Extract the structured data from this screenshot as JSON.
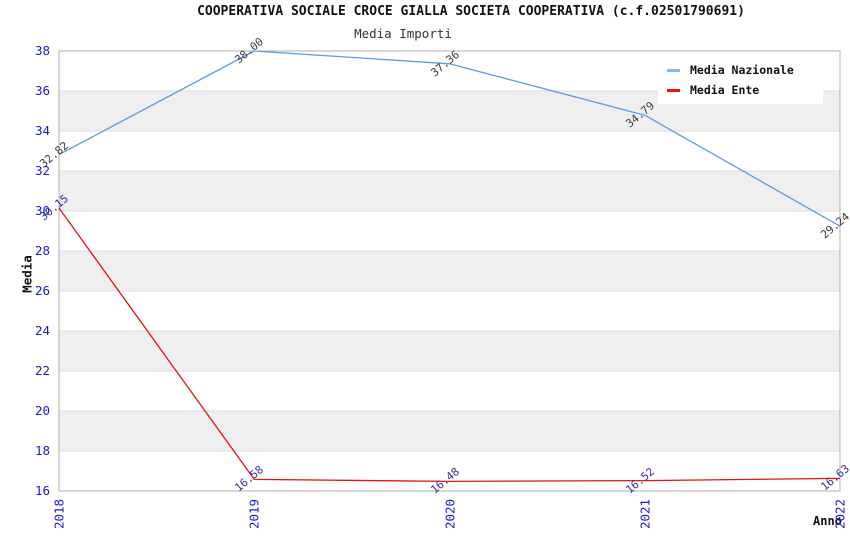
{
  "title": "COOPERATIVA SOCIALE CROCE GIALLA SOCIETA COOPERATIVA (c.f.02501790691)",
  "subtitle": "Media Importi",
  "y_axis": {
    "label": "Media",
    "ticks": [
      38,
      36,
      34,
      32,
      30,
      28,
      26,
      24,
      22,
      20,
      18,
      16
    ],
    "tick_color": "#1a1acd"
  },
  "x_axis": {
    "label": "Anno",
    "ticks": [
      "2018",
      "2019",
      "2020",
      "2021",
      "2022"
    ],
    "tick_color": "#1a1acd"
  },
  "legend": {
    "items": [
      {
        "label": "Media Nazionale",
        "color": "#85b9e8"
      },
      {
        "label": "Media Ente",
        "color": "#ee1111"
      }
    ]
  },
  "colors": {
    "band_white": "#ffffff",
    "band_gray": "#efefef",
    "gridline": "#dcdcdc",
    "plot_border": "#b0b0b0",
    "nazionale_line": "#5b9ce4",
    "ente_line": "#e81111",
    "nazionale_label": "#3a3a3a",
    "ente_label": "#32329b"
  },
  "chart_data": {
    "type": "line",
    "title": "COOPERATIVA SOCIALE CROCE GIALLA SOCIETA COOPERATIVA (c.f.02501790691)",
    "subtitle": "Media Importi",
    "xlabel": "Anno",
    "ylabel": "Media",
    "x": [
      "2018",
      "2019",
      "2020",
      "2021",
      "2022"
    ],
    "series": [
      {
        "name": "Media Nazionale",
        "values": [
          32.82,
          38.0,
          37.36,
          34.79,
          29.24
        ],
        "line_color": "#5b9ce4",
        "label_color": "#3a3a3a"
      },
      {
        "name": "Media Ente",
        "values": [
          30.15,
          16.58,
          16.48,
          16.52,
          16.63
        ],
        "line_color": "#e81111",
        "label_color": "#32329b"
      }
    ],
    "ylim": [
      16,
      38
    ],
    "ytick_step": 2,
    "grid": "horizontal-bands",
    "band_colors": [
      "#ffffff",
      "#efefef"
    ],
    "legend_position": "top-right",
    "point_labels_decimals": 2
  }
}
